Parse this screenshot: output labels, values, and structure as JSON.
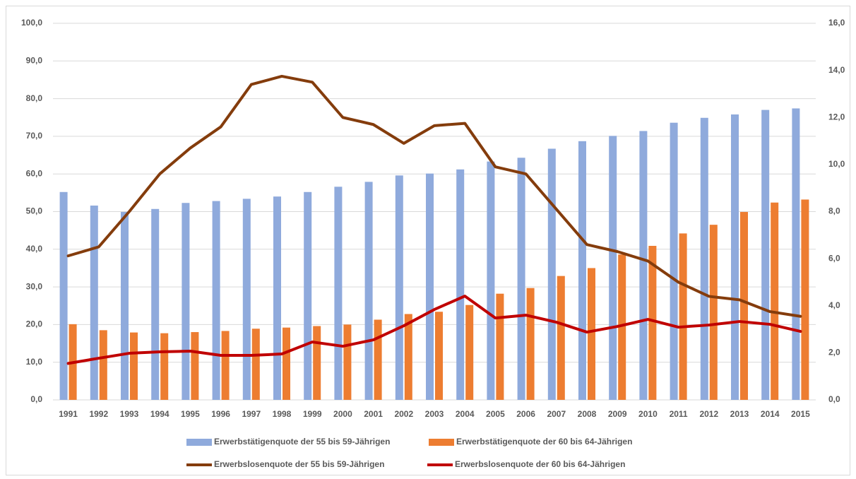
{
  "chart_data": {
    "type": "bar_line",
    "categories": [
      "1991",
      "1992",
      "1993",
      "1994",
      "1995",
      "1996",
      "1997",
      "1998",
      "1999",
      "2000",
      "2001",
      "2002",
      "2003",
      "2004",
      "2005",
      "2006",
      "2007",
      "2008",
      "2009",
      "2010",
      "2011",
      "2012",
      "2013",
      "2014",
      "2015"
    ],
    "series": [
      {
        "name": "Erwerbstätigenquote der 55 bis 59-Jährigen",
        "type": "bar",
        "color": "#8faadc",
        "values": [
          55.2,
          51.6,
          49.9,
          50.7,
          52.3,
          52.8,
          53.4,
          54.0,
          55.2,
          56.6,
          57.9,
          59.6,
          60.1,
          61.2,
          63.3,
          64.3,
          66.7,
          68.7,
          70.1,
          71.4,
          73.6,
          74.9,
          75.8,
          77.0,
          77.4
        ]
      },
      {
        "name": "Erwerbstätigenquote der 60 bis 64-Jährigen",
        "type": "bar",
        "color": "#ed7d31",
        "values": [
          20.1,
          18.5,
          17.9,
          17.7,
          18.0,
          18.3,
          18.9,
          19.2,
          19.6,
          20.0,
          21.3,
          22.8,
          23.4,
          25.2,
          28.2,
          29.7,
          32.9,
          35.0,
          38.6,
          40.9,
          44.2,
          46.5,
          49.9,
          52.4,
          53.2
        ]
      },
      {
        "name": "Erwerbslosenquote der 55 bis 59-Jährigen",
        "type": "line",
        "axis": "y2",
        "color": "#843c0c",
        "values": [
          6.12,
          6.5,
          8.0,
          9.6,
          10.7,
          11.6,
          13.4,
          13.75,
          13.5,
          12.0,
          11.7,
          10.9,
          11.65,
          11.75,
          9.9,
          9.6,
          8.1,
          6.6,
          6.3,
          5.9,
          5.0,
          4.4,
          4.25,
          3.75,
          3.55
        ]
      },
      {
        "name": "Erwerbslosenquote der 60 bis 64-Jährigen",
        "type": "line",
        "axis": "y2",
        "color": "#c00000",
        "values": [
          1.55,
          1.77,
          1.98,
          2.04,
          2.07,
          1.89,
          1.89,
          1.95,
          2.46,
          2.28,
          2.55,
          3.15,
          3.84,
          4.41,
          3.48,
          3.6,
          3.3,
          2.88,
          3.12,
          3.42,
          3.09,
          3.18,
          3.33,
          3.21,
          2.91
        ]
      }
    ],
    "ylim": [
      0,
      100
    ],
    "yticks": [
      {
        "value": 0,
        "label": "0,0"
      },
      {
        "value": 10,
        "label": "10,0"
      },
      {
        "value": 20,
        "label": "20,0"
      },
      {
        "value": 30,
        "label": "30,0"
      },
      {
        "value": 40,
        "label": "40,0"
      },
      {
        "value": 50,
        "label": "50,0"
      },
      {
        "value": 60,
        "label": "60,0"
      },
      {
        "value": 70,
        "label": "70,0"
      },
      {
        "value": 80,
        "label": "80,0"
      },
      {
        "value": 90,
        "label": "90,0"
      },
      {
        "value": 100,
        "label": "100,0"
      }
    ],
    "y2lim": [
      0,
      16
    ],
    "y2ticks": [
      {
        "value": 0,
        "label": "0,0"
      },
      {
        "value": 2,
        "label": "2,0"
      },
      {
        "value": 4,
        "label": "4,0"
      },
      {
        "value": 6,
        "label": "6,0"
      },
      {
        "value": 8,
        "label": "8,0"
      },
      {
        "value": 10,
        "label": "10,0"
      },
      {
        "value": 12,
        "label": "12,0"
      },
      {
        "value": 14,
        "label": "14,0"
      },
      {
        "value": 16,
        "label": "16,0"
      }
    ],
    "grid": true
  }
}
